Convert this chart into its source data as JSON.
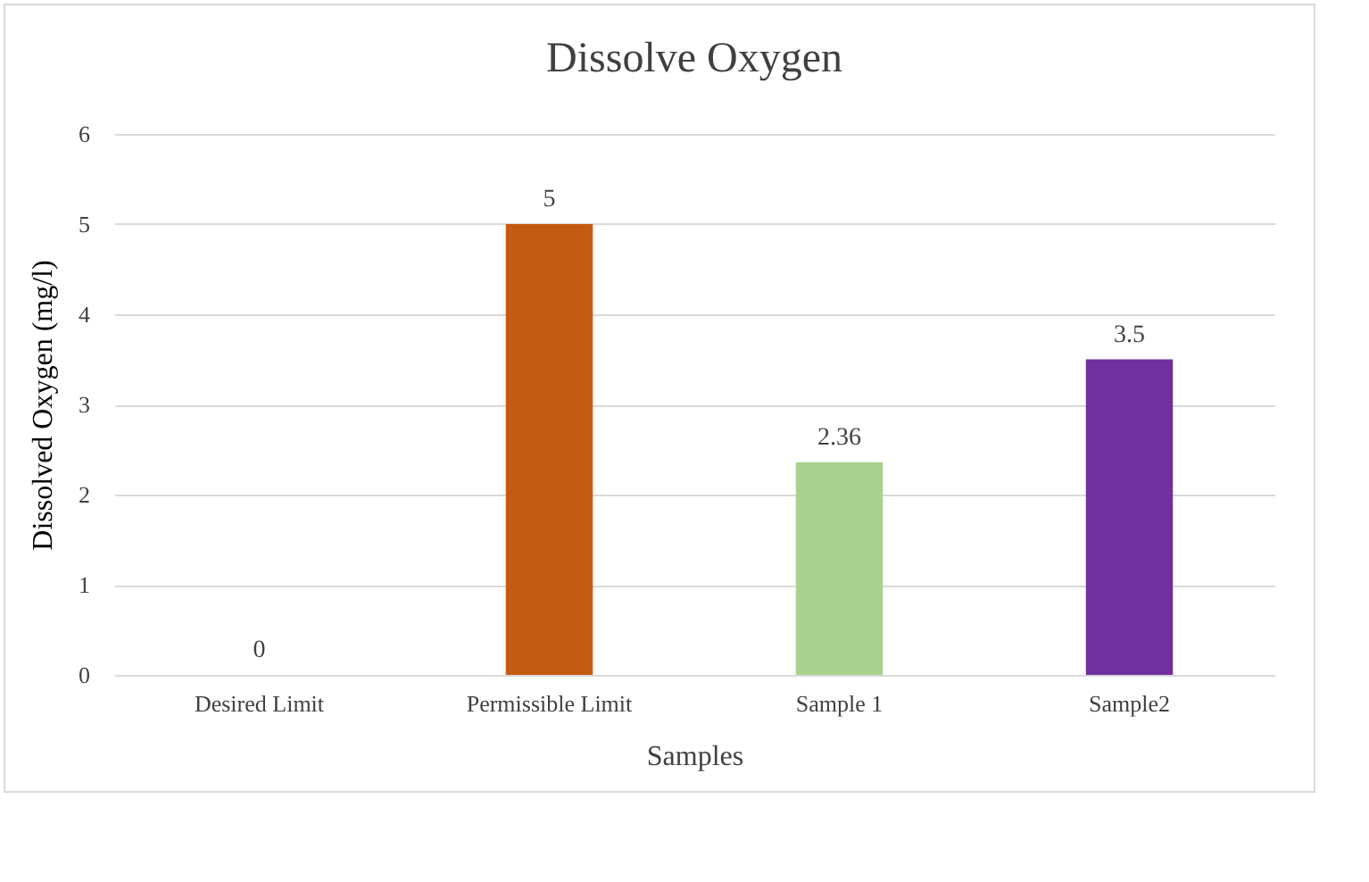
{
  "chart_data": {
    "type": "bar",
    "title": "Dissolve Oxygen",
    "xlabel": "Samples",
    "ylabel": "Dissolved Oxygen  (mg/l)",
    "categories": [
      "Desired Limit",
      "Permissible Limit",
      "Sample 1",
      "Sample2"
    ],
    "values": [
      0,
      5,
      2.36,
      3.5
    ],
    "colors": [
      "#4472c4",
      "#c55a11",
      "#a9d18e",
      "#7030a0"
    ],
    "ylim": [
      0,
      6
    ],
    "yticks": [
      0,
      1,
      2,
      3,
      4,
      5,
      6
    ],
    "grid": "y",
    "data_labels": true
  }
}
